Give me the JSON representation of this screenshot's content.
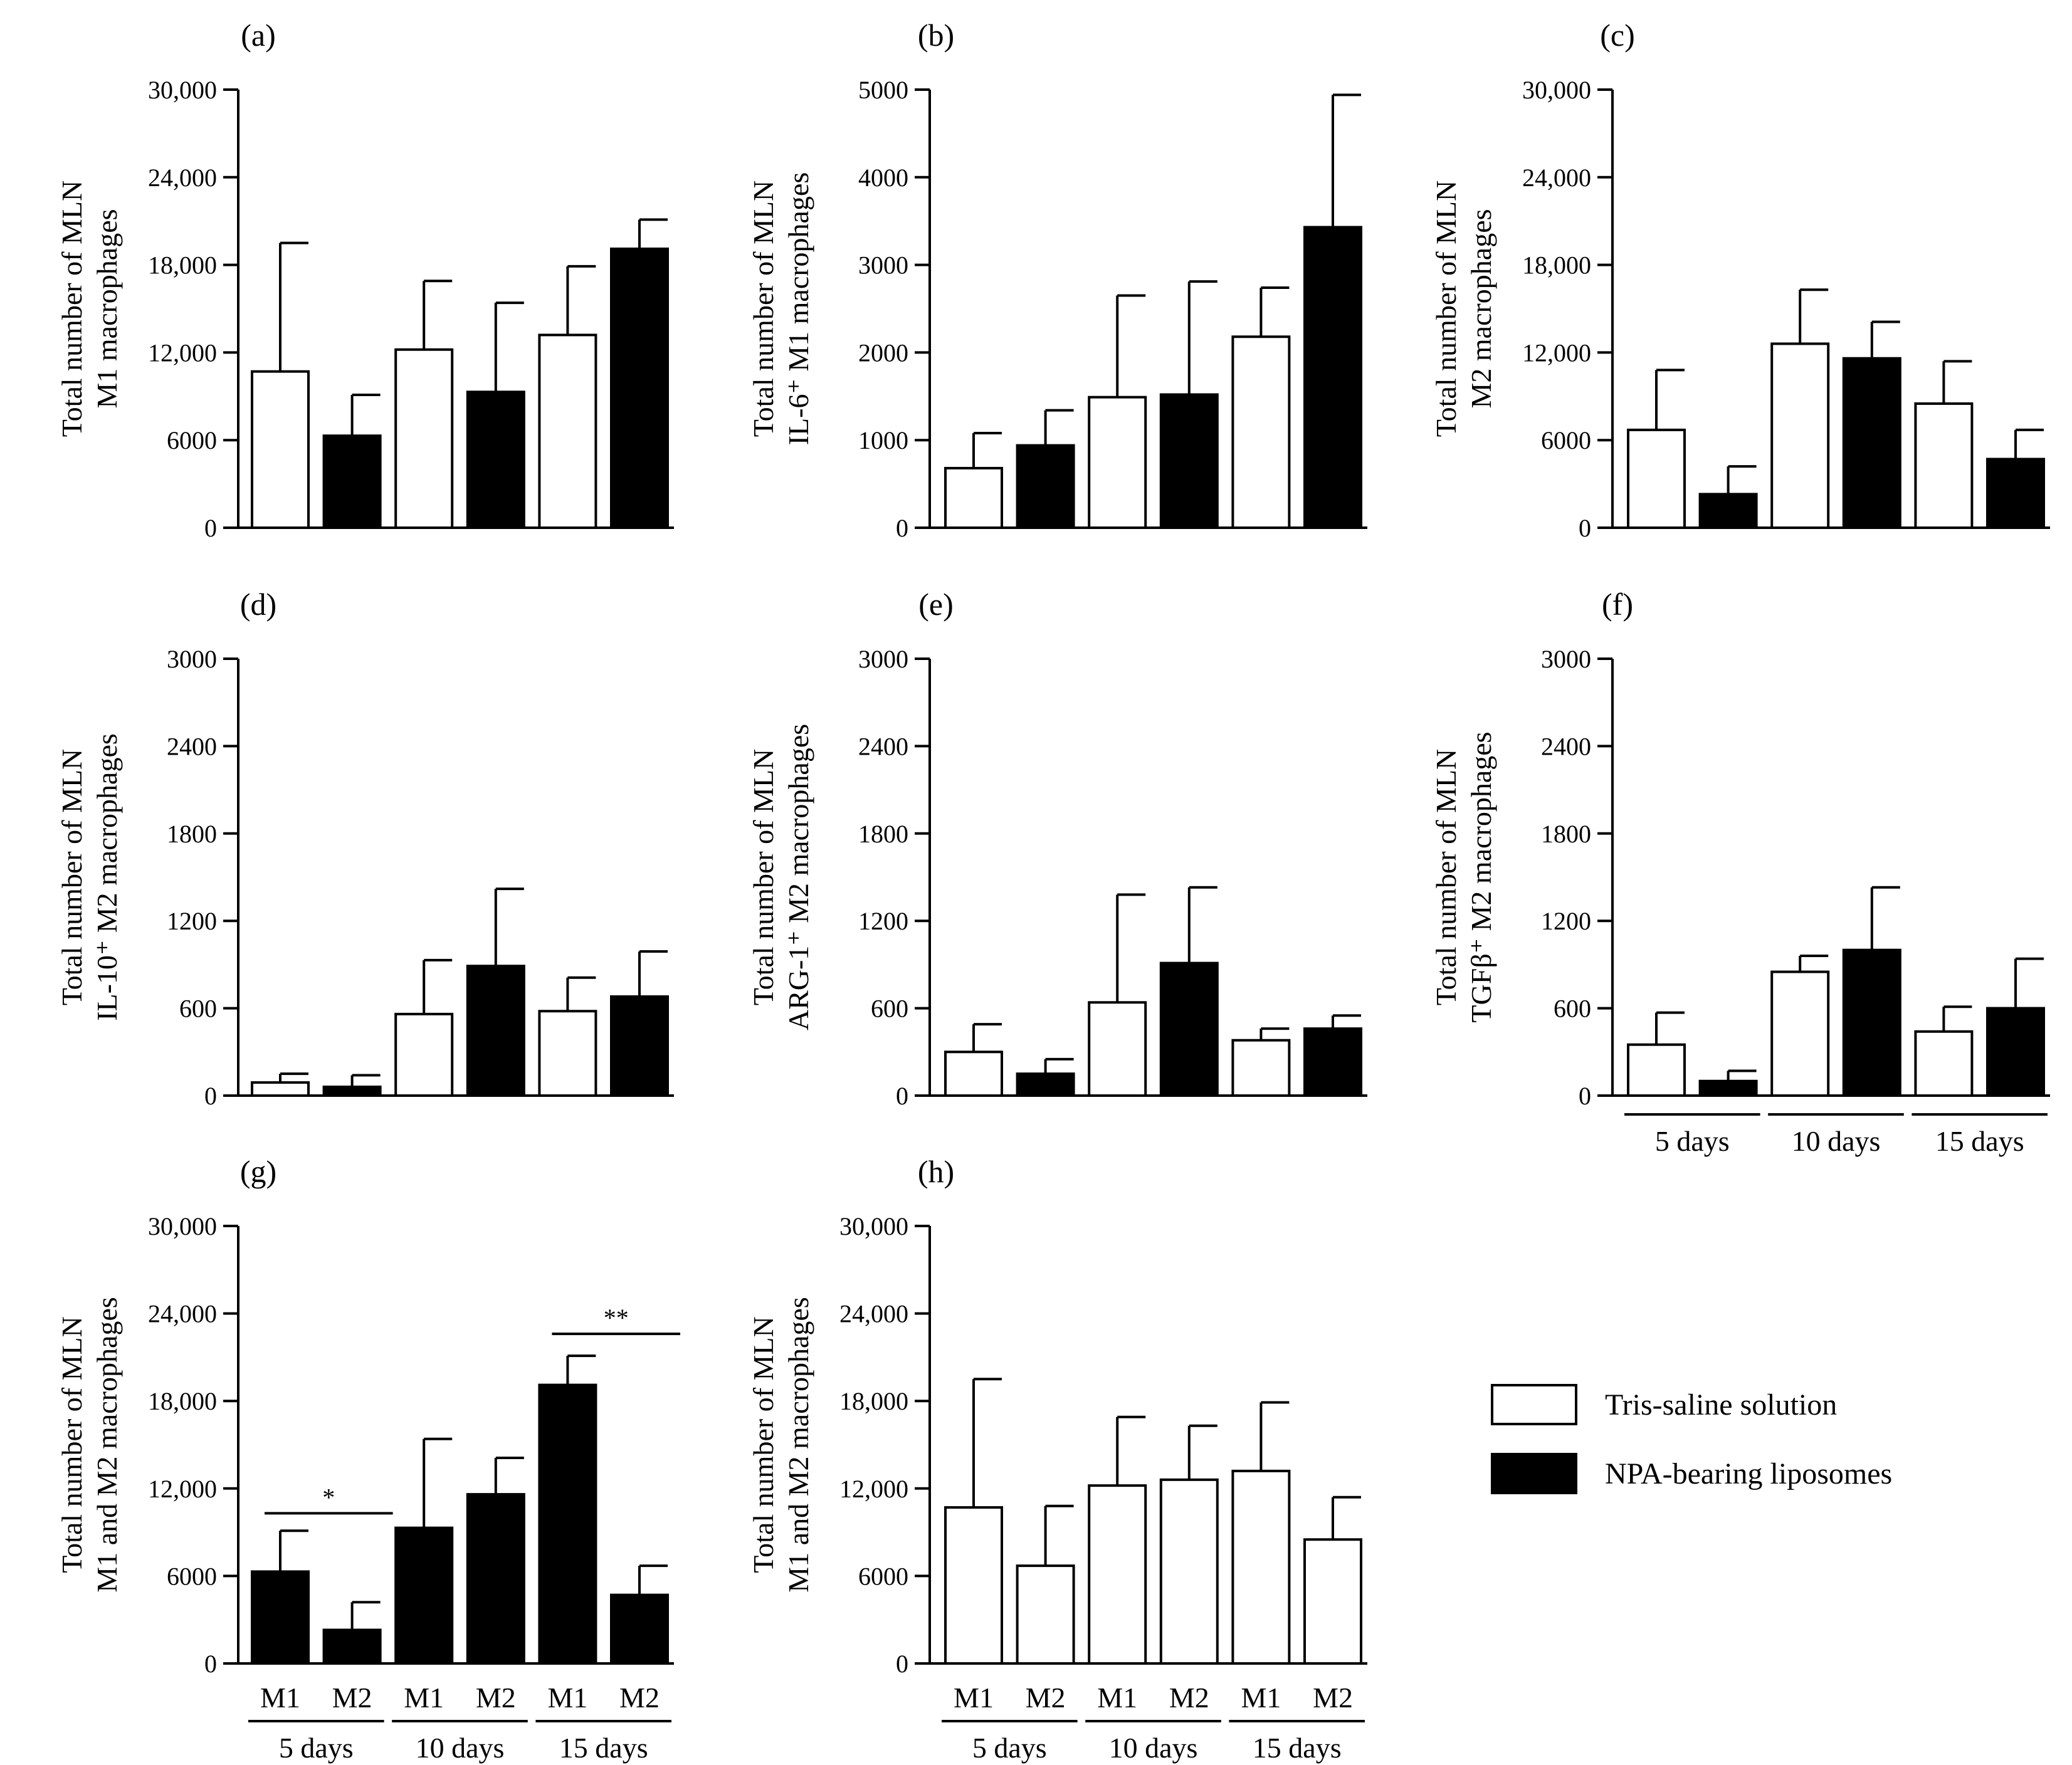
{
  "legend": {
    "items": [
      {
        "label": "Tris-saline solution",
        "fill": "#ffffff"
      },
      {
        "label": "NPA-bearing liposomes",
        "fill": "#000000"
      }
    ]
  },
  "colors": {
    "tris": "#ffffff",
    "npa": "#000000",
    "stroke": "#000000"
  },
  "chart_data": [
    {
      "panel": "(a)",
      "type": "bar",
      "ylabel": [
        "Total number of MLN",
        "M1 macrophages"
      ],
      "ylim": [
        0,
        30000
      ],
      "yticks": [
        "0",
        "6000",
        "12,000",
        "18,000",
        "24,000",
        "30,000"
      ],
      "bars": [
        {
          "fill": "white",
          "value": 10700,
          "error": 8800
        },
        {
          "fill": "black",
          "value": 6300,
          "error": 2800
        },
        {
          "fill": "white",
          "value": 12200,
          "error": 4700
        },
        {
          "fill": "black",
          "value": 9300,
          "error": 6100
        },
        {
          "fill": "white",
          "value": 13200,
          "error": 4700
        },
        {
          "fill": "black",
          "value": 19100,
          "error": 2000
        }
      ]
    },
    {
      "panel": "(b)",
      "type": "bar",
      "ylabel": [
        "Total number of MLN",
        "IL-6⁺ M1 macrophages"
      ],
      "ylim": [
        0,
        5000
      ],
      "yticks": [
        "0",
        "1000",
        "2000",
        "3000",
        "4000",
        "5000"
      ],
      "bars": [
        {
          "fill": "white",
          "value": 680,
          "error": 400
        },
        {
          "fill": "black",
          "value": 940,
          "error": 400
        },
        {
          "fill": "white",
          "value": 1490,
          "error": 1160
        },
        {
          "fill": "black",
          "value": 1520,
          "error": 1290
        },
        {
          "fill": "white",
          "value": 2180,
          "error": 560
        },
        {
          "fill": "black",
          "value": 3430,
          "error": 1510
        }
      ]
    },
    {
      "panel": "(c)",
      "type": "bar",
      "ylabel": [
        "Total number of MLN",
        "M2 macrophages"
      ],
      "ylim": [
        0,
        30000
      ],
      "yticks": [
        "0",
        "6000",
        "12,000",
        "18,000",
        "24,000",
        "30,000"
      ],
      "bars": [
        {
          "fill": "white",
          "value": 6700,
          "error": 4100
        },
        {
          "fill": "black",
          "value": 2300,
          "error": 1900
        },
        {
          "fill": "white",
          "value": 12600,
          "error": 3700
        },
        {
          "fill": "black",
          "value": 11600,
          "error": 2500
        },
        {
          "fill": "white",
          "value": 8500,
          "error": 2900
        },
        {
          "fill": "black",
          "value": 4700,
          "error": 2000
        }
      ]
    },
    {
      "panel": "(d)",
      "type": "bar",
      "ylabel": [
        "Total number of MLN",
        "IL-10⁺ M2 macrophages"
      ],
      "ylim": [
        0,
        3000
      ],
      "yticks": [
        "0",
        "600",
        "1200",
        "1800",
        "2400",
        "3000"
      ],
      "bars": [
        {
          "fill": "white",
          "value": 90,
          "error": 60
        },
        {
          "fill": "black",
          "value": 60,
          "error": 80
        },
        {
          "fill": "white",
          "value": 560,
          "error": 370
        },
        {
          "fill": "black",
          "value": 890,
          "error": 530
        },
        {
          "fill": "white",
          "value": 580,
          "error": 230
        },
        {
          "fill": "black",
          "value": 680,
          "error": 310
        }
      ]
    },
    {
      "panel": "(e)",
      "type": "bar",
      "ylabel": [
        "Total number of MLN",
        "ARG-1⁺ M2 macrophages"
      ],
      "ylim": [
        0,
        3000
      ],
      "yticks": [
        "0",
        "600",
        "1200",
        "1800",
        "2400",
        "3000"
      ],
      "bars": [
        {
          "fill": "white",
          "value": 300,
          "error": 190
        },
        {
          "fill": "black",
          "value": 150,
          "error": 100
        },
        {
          "fill": "white",
          "value": 640,
          "error": 740
        },
        {
          "fill": "black",
          "value": 910,
          "error": 520
        },
        {
          "fill": "white",
          "value": 380,
          "error": 80
        },
        {
          "fill": "black",
          "value": 460,
          "error": 90
        }
      ]
    },
    {
      "panel": "(f)",
      "type": "bar",
      "ylabel": [
        "Total number of MLN",
        "TGFβ⁺ M2 macrophages"
      ],
      "ylim": [
        0,
        3000
      ],
      "yticks": [
        "0",
        "600",
        "1200",
        "1800",
        "2400",
        "3000"
      ],
      "groups": [
        "5 days",
        "10 days",
        "15 days"
      ],
      "bars": [
        {
          "fill": "white",
          "value": 350,
          "error": 220
        },
        {
          "fill": "black",
          "value": 100,
          "error": 70
        },
        {
          "fill": "white",
          "value": 850,
          "error": 110
        },
        {
          "fill": "black",
          "value": 1000,
          "error": 430
        },
        {
          "fill": "white",
          "value": 440,
          "error": 170
        },
        {
          "fill": "black",
          "value": 600,
          "error": 340
        }
      ]
    },
    {
      "panel": "(g)",
      "type": "bar",
      "ylabel": [
        "Total number of MLN",
        "M1 and M2 macrophages"
      ],
      "ylim": [
        0,
        30000
      ],
      "yticks": [
        "0",
        "6000",
        "12,000",
        "18,000",
        "24,000",
        "30,000"
      ],
      "categories": [
        "M1",
        "M2",
        "M1",
        "M2",
        "M1",
        "M2"
      ],
      "groups": [
        "5 days",
        "10 days",
        "15 days"
      ],
      "bars": [
        {
          "fill": "black",
          "value": 6300,
          "error": 2800
        },
        {
          "fill": "black",
          "value": 2300,
          "error": 1900
        },
        {
          "fill": "black",
          "value": 9300,
          "error": 6100
        },
        {
          "fill": "black",
          "value": 11600,
          "error": 2500
        },
        {
          "fill": "black",
          "value": 19100,
          "error": 2000
        },
        {
          "fill": "black",
          "value": 4700,
          "error": 2000
        }
      ],
      "annotations": [
        {
          "text": "*",
          "from": 0,
          "to": 1,
          "y": 10300
        },
        {
          "text": "**",
          "from": 4,
          "to": 5,
          "y": 22600
        }
      ]
    },
    {
      "panel": "(h)",
      "type": "bar",
      "ylabel": [
        "Total number of MLN",
        "M1 and M2 macrophages"
      ],
      "ylim": [
        0,
        30000
      ],
      "yticks": [
        "0",
        "6000",
        "12,000",
        "18,000",
        "24,000",
        "30,000"
      ],
      "categories": [
        "M1",
        "M2",
        "M1",
        "M2",
        "M1",
        "M2"
      ],
      "groups": [
        "5 days",
        "10 days",
        "15 days"
      ],
      "bars": [
        {
          "fill": "white",
          "value": 10700,
          "error": 8800
        },
        {
          "fill": "white",
          "value": 6700,
          "error": 4100
        },
        {
          "fill": "white",
          "value": 12200,
          "error": 4700
        },
        {
          "fill": "white",
          "value": 12600,
          "error": 3700
        },
        {
          "fill": "white",
          "value": 13200,
          "error": 4700
        },
        {
          "fill": "white",
          "value": 8500,
          "error": 2900
        }
      ]
    }
  ]
}
